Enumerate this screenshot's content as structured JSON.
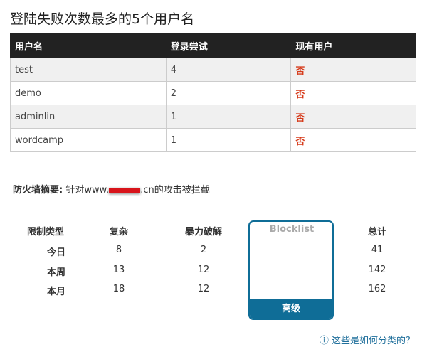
{
  "title": "登陆失败次数最多的5个用户名",
  "users_table": {
    "headers": [
      "用户名",
      "登录尝试",
      "现有用户"
    ],
    "rows": [
      [
        "test",
        "4",
        "否"
      ],
      [
        "demo",
        "2",
        "否"
      ],
      [
        "adminlin",
        "1",
        "否"
      ],
      [
        "wordcamp",
        "1",
        "否"
      ]
    ]
  },
  "firewall": {
    "label": "防火墙摘要:",
    "prefix": "针对www.",
    "suffix": ".cn的攻击被拦截"
  },
  "stats": {
    "headers": [
      "限制类型",
      "复杂",
      "暴力破解",
      "Blocklist",
      "总计"
    ],
    "rows": [
      [
        "今日",
        "8",
        "2",
        "—",
        "41"
      ],
      [
        "本周",
        "13",
        "12",
        "—",
        "142"
      ],
      [
        "本月",
        "18",
        "12",
        "—",
        "162"
      ]
    ],
    "blocklist_button": "高级"
  },
  "help_link": "这些是如何分类的？",
  "colors": {
    "accent": "#0f6d97",
    "no": "#d63b1b",
    "header_bg": "#222222"
  }
}
